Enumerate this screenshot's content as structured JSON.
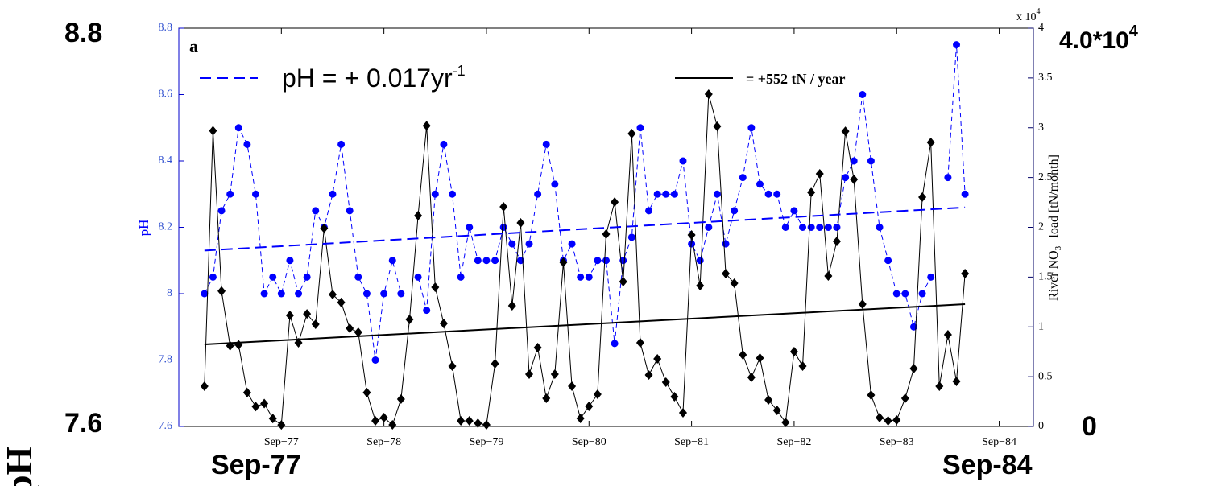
{
  "chart_data": {
    "type": "line",
    "panel_label": "a",
    "ylabel": "pH",
    "y2label": {
      "text": "River NO",
      "sub": "3",
      "sup": "−",
      "tail": " load [tN/month]"
    },
    "y2_multiplier": {
      "text": "x 10",
      "sup": "4"
    },
    "xlim": [
      "1976-09",
      "1985-01"
    ],
    "xticks": [
      {
        "value": "1977-09",
        "label": "Sep−77"
      },
      {
        "value": "1978-09",
        "label": "Sep−78"
      },
      {
        "value": "1979-09",
        "label": "Sep−79"
      },
      {
        "value": "1980-09",
        "label": "Sep−80"
      },
      {
        "value": "1981-09",
        "label": "Sep−81"
      },
      {
        "value": "1982-09",
        "label": "Sep−82"
      },
      {
        "value": "1983-09",
        "label": "Sep−83"
      },
      {
        "value": "1984-09",
        "label": "Sep−84"
      }
    ],
    "ylim": [
      7.6,
      8.8
    ],
    "yticks": [
      7.6,
      7.8,
      8,
      8.2,
      8.4,
      8.6,
      8.8
    ],
    "y2lim": [
      0,
      40000
    ],
    "y2ticks": [
      0,
      {
        "value": 5000,
        "label": "0.5"
      },
      {
        "value": 10000,
        "label": "1"
      },
      {
        "value": 15000,
        "label": "1.5"
      },
      {
        "value": 20000,
        "label": "2"
      },
      {
        "value": 25000,
        "label": "2.5"
      },
      {
        "value": 30000,
        "label": "3"
      },
      {
        "value": 35000,
        "label": "3.5"
      },
      {
        "value": 40000,
        "label": "4"
      }
    ],
    "x": [
      "1976-12",
      "1977-01",
      "1977-02",
      "1977-03",
      "1977-04",
      "1977-05",
      "1977-06",
      "1977-07",
      "1977-08",
      "1977-09",
      "1977-10",
      "1977-11",
      "1977-12",
      "1978-01",
      "1978-02",
      "1978-03",
      "1978-04",
      "1978-05",
      "1978-06",
      "1978-07",
      "1978-08",
      "1978-09",
      "1978-10",
      "1978-11",
      "1978-12",
      "1979-01",
      "1979-02",
      "1979-03",
      "1979-04",
      "1979-05",
      "1979-06",
      "1979-07",
      "1979-08",
      "1979-09",
      "1979-10",
      "1979-11",
      "1979-12",
      "1980-01",
      "1980-02",
      "1980-03",
      "1980-04",
      "1980-05",
      "1980-06",
      "1980-07",
      "1980-08",
      "1980-09",
      "1980-10",
      "1980-11",
      "1980-12",
      "1981-01",
      "1981-02",
      "1981-03",
      "1981-04",
      "1981-05",
      "1981-06",
      "1981-07",
      "1981-08",
      "1981-09",
      "1981-10",
      "1981-11",
      "1981-12",
      "1982-01",
      "1982-02",
      "1982-03",
      "1982-04",
      "1982-05",
      "1982-06",
      "1982-07",
      "1982-08",
      "1982-09",
      "1982-10",
      "1982-11",
      "1982-12",
      "1983-01",
      "1983-02",
      "1983-03",
      "1983-04",
      "1983-05",
      "1983-06",
      "1983-07",
      "1983-08",
      "1983-09",
      "1983-10",
      "1983-11",
      "1983-12",
      "1984-01",
      "1984-02",
      "1984-03",
      "1984-04",
      "1984-05"
    ],
    "series": [
      {
        "name": "pH",
        "axis": "y",
        "color": "#0000ff",
        "marker": "circle",
        "dashed": true,
        "values": [
          8.0,
          8.05,
          8.25,
          8.3,
          8.5,
          8.45,
          8.3,
          8.0,
          8.05,
          8.0,
          8.1,
          8.0,
          8.05,
          8.25,
          8.2,
          8.3,
          8.45,
          8.25,
          8.05,
          8.0,
          7.8,
          8.0,
          8.1,
          8.0,
          null,
          8.05,
          7.95,
          8.3,
          8.45,
          8.3,
          8.05,
          8.2,
          8.1,
          8.1,
          8.1,
          8.2,
          8.15,
          8.1,
          8.15,
          8.3,
          8.45,
          8.33,
          8.1,
          8.15,
          8.05,
          8.05,
          8.1,
          8.1,
          7.85,
          8.1,
          8.17,
          8.5,
          8.25,
          8.3,
          8.3,
          8.3,
          8.4,
          8.15,
          8.1,
          8.2,
          8.3,
          8.15,
          8.25,
          8.35,
          8.5,
          8.33,
          8.3,
          8.3,
          8.2,
          8.25,
          8.2,
          8.2,
          8.2,
          8.2,
          8.2,
          8.35,
          8.4,
          8.6,
          8.4,
          8.2,
          8.1,
          8.0,
          8.0,
          7.9,
          8.0,
          8.05,
          null,
          8.35,
          8.75,
          8.3
        ]
      },
      {
        "name": "River NO3 load",
        "axis": "y2",
        "color": "#000000",
        "marker": "diamond",
        "dashed": false,
        "values": [
          4040,
          29700,
          13600,
          8100,
          8200,
          3400,
          2000,
          2300,
          800,
          150,
          11150,
          8400,
          11300,
          10260,
          19900,
          13250,
          12450,
          9860,
          9450,
          3400,
          570,
          890,
          160,
          2750,
          10750,
          21170,
          30200,
          13980,
          10340,
          6060,
          570,
          570,
          320,
          160,
          6300,
          22060,
          12120,
          20440,
          5250,
          7920,
          2830,
          5250,
          16480,
          4040,
          810,
          2020,
          3230,
          19310,
          22540,
          14550,
          29410,
          8400,
          5170,
          6790,
          4440,
          2990,
          1370,
          19230,
          14140,
          33370,
          30140,
          15350,
          14380,
          7190,
          4930,
          6870,
          2670,
          1620,
          400,
          7520,
          6060,
          23510,
          25370,
          15110,
          18590,
          29650,
          24810,
          12280,
          3150,
          890,
          570,
          650,
          2830,
          5820,
          23030,
          28530,
          4040,
          9210,
          4530,
          15350
        ]
      }
    ],
    "trends": [
      {
        "name": "pH = + 0.017yr",
        "name_sup": "-1",
        "axis": "y",
        "color": "#0000ff",
        "dashed": true,
        "x": [
          "1976-12",
          "1984-05"
        ],
        "values": [
          8.13,
          8.26
        ]
      },
      {
        "name": "= +552 tN / year",
        "axis": "y2",
        "color": "#000000",
        "dashed": false,
        "x": [
          "1976-12",
          "1984-05"
        ],
        "values": [
          8240,
          12280
        ]
      }
    ],
    "annotations": [
      {
        "text": "8.8"
      },
      {
        "text": "7.6"
      },
      {
        "text": "4.0*10",
        "sup": "4"
      },
      {
        "text": "0"
      },
      {
        "text": "Sep-77"
      },
      {
        "text": "Sep-84"
      },
      {
        "text": "pH"
      }
    ]
  }
}
